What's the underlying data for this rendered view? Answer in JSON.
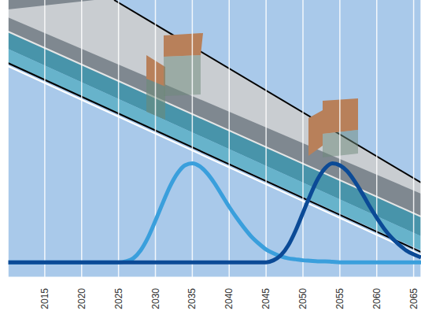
{
  "chart_data": {
    "type": "line",
    "x": [
      2010,
      2025,
      2026,
      2027,
      2028,
      2029,
      2030,
      2031,
      2032,
      2033,
      2034,
      2035,
      2036,
      2037,
      2038,
      2039,
      2040,
      2041,
      2042,
      2043,
      2044,
      2045,
      2046,
      2047,
      2048,
      2049,
      2050,
      2051,
      2052,
      2053,
      2054,
      2055,
      2056,
      2057,
      2058,
      2059,
      2060,
      2061,
      2062,
      2063,
      2064,
      2065,
      2066
    ],
    "series": [
      {
        "color": "#3a9fdc",
        "values": [
          0,
          0,
          0.01,
          0.04,
          0.12,
          0.25,
          0.42,
          0.6,
          0.77,
          0.9,
          0.98,
          1,
          0.97,
          0.9,
          0.8,
          0.68,
          0.56,
          0.45,
          0.35,
          0.26,
          0.19,
          0.13,
          0.09,
          0.06,
          0.04,
          0.03,
          0.02,
          0.015,
          0.01,
          0.01,
          0.005,
          0,
          0,
          0,
          0,
          0,
          0,
          0,
          0,
          0,
          0,
          0,
          0
        ]
      },
      {
        "color": "#0b4a96",
        "values": [
          0,
          0,
          0,
          0,
          0,
          0,
          0,
          0,
          0,
          0,
          0,
          0,
          0,
          0,
          0,
          0,
          0,
          0,
          0,
          0,
          0,
          0,
          0.02,
          0.07,
          0.17,
          0.32,
          0.5,
          0.68,
          0.84,
          0.95,
          1,
          0.98,
          0.92,
          0.82,
          0.7,
          0.57,
          0.45,
          0.34,
          0.25,
          0.18,
          0.12,
          0.08,
          0.05
        ]
      }
    ],
    "xlim": [
      2010,
      2066
    ],
    "xticks": [
      2015,
      2020,
      2025,
      2030,
      2035,
      2040,
      2045,
      2050,
      2055,
      2060,
      2065
    ],
    "ylim": [
      -0.15,
      2.65
    ],
    "grid": true,
    "tick_labels": "x"
  }
}
